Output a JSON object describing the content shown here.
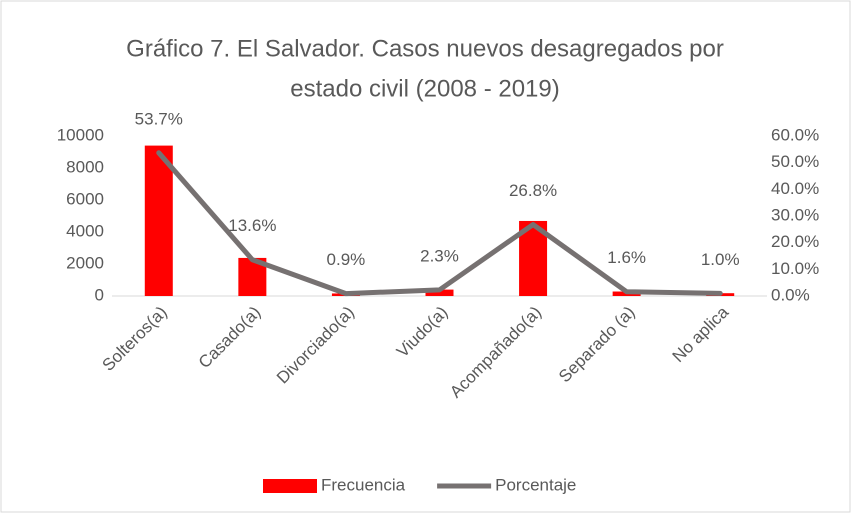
{
  "chart_data": {
    "type": "bar_line",
    "title": [
      "Gráfico 7. El Salvador. Casos nuevos desagregados por",
      "estado civil (2008 - 2019)"
    ],
    "categories": [
      "Solteros(a)",
      "Casado(a)",
      "Divorciado(a)",
      "Viudo(a)",
      "Acompañado(a)",
      "Separado (a)",
      "No aplica"
    ],
    "series": [
      {
        "name": "Frecuencia",
        "type": "bar",
        "color": "#ff0000",
        "axis": "y",
        "values": [
          9400,
          2380,
          160,
          400,
          4690,
          280,
          175
        ]
      },
      {
        "name": "Porcentaje",
        "type": "line",
        "color": "#767171",
        "axis": "y2",
        "values": [
          53.7,
          13.6,
          0.9,
          2.3,
          26.8,
          1.6,
          1.0
        ],
        "value_labels": [
          "53.7%",
          "13.6%",
          "0.9%",
          "2.3%",
          "26.8%",
          "1.6%",
          "1.0%"
        ]
      }
    ],
    "ylim": [
      0,
      10000
    ],
    "yticks": [
      0,
      2000,
      4000,
      6000,
      8000,
      10000
    ],
    "y2lim": [
      0,
      60
    ],
    "y2ticks": [
      {
        "value": 0,
        "label": "0.0%"
      },
      {
        "value": 10,
        "label": "10.0%"
      },
      {
        "value": 20,
        "label": "20.0%"
      },
      {
        "value": 30,
        "label": "30.0%"
      },
      {
        "value": 40,
        "label": "40.0%"
      },
      {
        "value": 50,
        "label": "50.0%"
      },
      {
        "value": 60,
        "label": "60.0%"
      }
    ],
    "grid": false,
    "legend": "bottom"
  }
}
